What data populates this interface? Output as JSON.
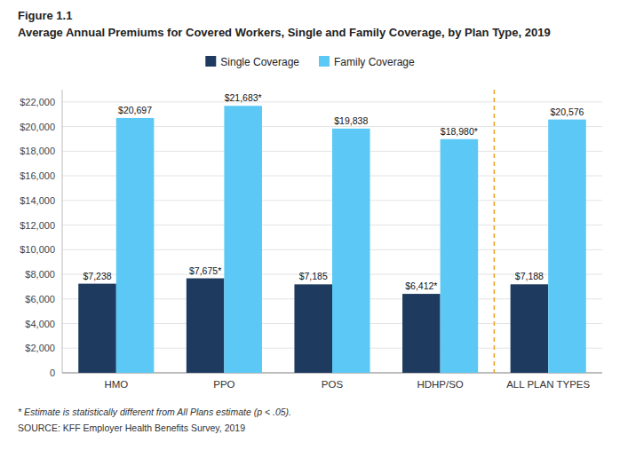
{
  "chart_data": {
    "type": "bar",
    "title": "Average Annual Premiums for Covered Workers, Single and Family Coverage, by Plan Type, 2019",
    "annotations": [
      "Figure 1.1",
      "* Estimate is statistically different from All Plans estimate (p < .05).",
      "SOURCE: KFF Employer Health Benefits Survey, 2019"
    ],
    "categories": [
      "HMO",
      "PPO",
      "POS",
      "HDHP/SO",
      "ALL PLAN TYPES"
    ],
    "series": [
      {
        "name": "Single Coverage",
        "color": "#1e3a5f",
        "values": [
          7238,
          7675,
          7185,
          6412,
          7188
        ],
        "value_labels": [
          "$7,238",
          "$7,675*",
          "$7,185",
          "$6,412*",
          "$7,188"
        ]
      },
      {
        "name": "Family Coverage",
        "color": "#5bc8f5",
        "values": [
          20697,
          21683,
          19838,
          18980,
          20576
        ],
        "value_labels": [
          "$20,697",
          "$21,683*",
          "$19,838",
          "$18,980*",
          "$20,576"
        ]
      }
    ],
    "ylim": [
      0,
      23000
    ],
    "yticks": [
      0,
      {
        "value": 2000,
        "label": "$2,000"
      },
      {
        "value": 4000,
        "label": "$4,000"
      },
      {
        "value": 6000,
        "label": "$6,000"
      },
      {
        "value": 8000,
        "label": "$8,000"
      },
      {
        "value": 10000,
        "label": "$10,000"
      },
      {
        "value": 12000,
        "label": "$12,000"
      },
      {
        "value": 14000,
        "label": "$14,000"
      },
      {
        "value": 16000,
        "label": "$16,000"
      },
      {
        "value": 18000,
        "label": "$18,000"
      },
      {
        "value": 20000,
        "label": "$20,000"
      },
      {
        "value": 22000,
        "label": "$22,000"
      }
    ],
    "grid": true,
    "legend": "top",
    "data_labels": true
  }
}
